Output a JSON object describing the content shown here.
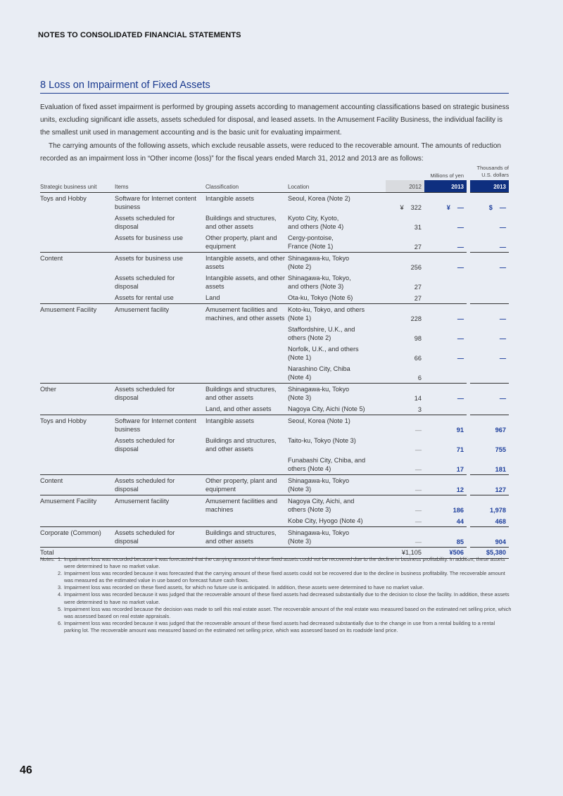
{
  "header": "NOTES TO CONSOLIDATED FINANCIAL STATEMENTS",
  "section_title": "8  Loss on Impairment of Fixed Assets",
  "intro": [
    "Evaluation of fixed asset impairment is performed by grouping assets according to management accounting classifications based on strategic business units, excluding significant idle assets, assets scheduled for disposal, and leased assets. In the Amusement Facility Business, the individual facility is the smallest unit used in management accounting and is the basic unit for evaluating impairment.",
    "The carrying amounts of the following assets, which exclude reusable assets, were reduced to the recoverable amount. The amounts of reduction recorded as an impairment loss in “Other income (loss)” for the fiscal years ended March 31, 2012 and 2013 are as follows:"
  ],
  "units": {
    "yen": "Millions of yen",
    "usd": "Thousands of\nU.S. dollars"
  },
  "columns": [
    "Strategic business unit",
    "Items",
    "Classification",
    "Location",
    "2012",
    "2013",
    "2013"
  ],
  "rows": [
    {
      "g": 1,
      "unit": "Toys and Hobby",
      "item": "Software for Internet content\nbusiness",
      "cls": "Intangible assets",
      "loc": "Seoul, Korea (Note 2)",
      "y12": "322",
      "y12c": "¥",
      "y13": "—",
      "y13c": "¥",
      "usd": "—",
      "usdc": "$"
    },
    {
      "g": 0,
      "unit": "",
      "item": "Assets scheduled for\ndisposal",
      "cls": "Buildings and structures,\nand other assets",
      "loc": "Kyoto City, Kyoto,\nand others (Note 4)",
      "y12": "31",
      "y13": "—",
      "usd": "—"
    },
    {
      "g": 0,
      "unit": "",
      "item": "Assets for business use",
      "cls": "Other property, plant and\nequipment",
      "loc": "Cergy-pontoise,\nFrance (Note 1)",
      "y12": "27",
      "y13": "—",
      "usd": "—"
    },
    {
      "g": 1,
      "unit": "Content",
      "item": "Assets for business use",
      "cls": "Intangible assets, and other\nassets",
      "loc": "Shinagawa-ku, Tokyo\n(Note 2)",
      "y12": "256",
      "y13": "—",
      "usd": "—"
    },
    {
      "g": 0,
      "unit": "",
      "item": "Assets scheduled for\ndisposal",
      "cls": "Intangible assets, and other\nassets",
      "loc": "Shinagawa-ku, Tokyo,\nand others (Note 3)",
      "y12": "27",
      "y13": "",
      "usd": ""
    },
    {
      "g": 0,
      "unit": "",
      "item": "Assets for rental use",
      "cls": "Land",
      "loc": "Ota-ku, Tokyo (Note 6)",
      "y12": "27",
      "y13": "",
      "usd": ""
    },
    {
      "g": 1,
      "unit": "Amusement Facility",
      "item": "Amusement facility",
      "cls": "Amusement facilities and\nmachines, and other assets",
      "loc": "Koto-ku, Tokyo, and others\n(Note 1)",
      "y12": "228",
      "y13": "—",
      "usd": "—"
    },
    {
      "g": 0,
      "unit": "",
      "item": "",
      "cls": "",
      "loc": "Staffordshire, U.K., and\nothers (Note 2)",
      "y12": "98",
      "y13": "—",
      "usd": "—"
    },
    {
      "g": 0,
      "unit": "",
      "item": "",
      "cls": "",
      "loc": "Norfolk, U.K., and others\n(Note 1)",
      "y12": "66",
      "y13": "—",
      "usd": "—"
    },
    {
      "g": 0,
      "unit": "",
      "item": "",
      "cls": "",
      "loc": "Narashino City, Chiba\n(Note 4)",
      "y12": "6",
      "y13": "",
      "usd": ""
    },
    {
      "g": 1,
      "unit": "Other",
      "item": "Assets scheduled for\ndisposal",
      "cls": "Buildings and structures,\nand other assets",
      "loc": "Shinagawa-ku, Tokyo\n(Note 3)",
      "y12": "14",
      "y13": "—",
      "usd": "—"
    },
    {
      "g": 0,
      "unit": "",
      "item": "",
      "cls": "Land, and other assets",
      "loc": "Nagoya City, Aichi (Note 5)",
      "y12": "3",
      "y13": "",
      "usd": ""
    },
    {
      "g": 1,
      "unit": "Toys and Hobby",
      "item": "Software for Internet content\nbusiness",
      "cls": "Intangible assets",
      "loc": "Seoul, Korea (Note 1)",
      "y12": "—",
      "y13": "91",
      "usd": "967"
    },
    {
      "g": 0,
      "unit": "",
      "item": "Assets scheduled for\ndisposal",
      "cls": "Buildings and structures,\nand other assets",
      "loc": "Taito-ku, Tokyo (Note 3)",
      "y12": "—",
      "y13": "71",
      "usd": "755"
    },
    {
      "g": 0,
      "unit": "",
      "item": "",
      "cls": "",
      "loc": "Funabashi City, Chiba, and\nothers (Note 4)",
      "y12": "—",
      "y13": "17",
      "usd": "181"
    },
    {
      "g": 1,
      "unit": "Content",
      "item": "Assets scheduled for\ndisposal",
      "cls": "Other property, plant and\nequipment",
      "loc": "Shinagawa-ku, Tokyo\n(Note 3)",
      "y12": "—",
      "y13": "12",
      "usd": "127"
    },
    {
      "g": 1,
      "unit": "Amusement Facility",
      "item": "Amusement facility",
      "cls": "Amusement facilities and\nmachines",
      "loc": "Nagoya City, Aichi, and\nothers (Note 3)",
      "y12": "—",
      "y13": "186",
      "usd": "1,978"
    },
    {
      "g": 0,
      "unit": "",
      "item": "",
      "cls": "",
      "loc": "Kobe City, Hyogo (Note 4)",
      "y12": "—",
      "y13": "44",
      "usd": "468"
    },
    {
      "g": 1,
      "unit": "Corporate (Common)",
      "item": "Assets scheduled for\ndisposal",
      "cls": "Buildings and structures,\nand other assets",
      "loc": "Shinagawa-ku, Tokyo\n(Note 3)",
      "y12": "—",
      "y13": "85",
      "usd": "904"
    }
  ],
  "total": {
    "label": "Total",
    "y12": "¥1,105",
    "y13": "¥506",
    "usd": "$5,380"
  },
  "notes_label": "Notes:",
  "notes": [
    "Impairment loss was recorded because it was forecasted that the carrying amount of these fixed assets could not be recovered due to the decline in business profitability. In addition, these assets were determined to have no market value.",
    "Impairment loss was recorded because it was forecasted that the carrying amount of these fixed assets could not be recovered due to the decline in business profitability. The recoverable amount was measured as the estimated value in use based on forecast future cash flows.",
    "Impairment loss was recorded on these fixed assets, for which no future use is anticipated. In addition, these assets were determined to have no market value.",
    "Impairment loss was recorded because it was judged that the recoverable amount of these fixed assets had decreased substantially due to the decision to close the facility. In addition, these assets were determined to have no market value.",
    "Impairment loss was recorded because the decision was made to sell this real estate asset. The recoverable amount of the real estate was measured based on the estimated net selling price, which was assessed based on real estate appraisals.",
    "Impairment loss was recorded because it was judged that the recoverable amount of these fixed assets had decreased substantially due to the change in use from a rental building to a rental parking lot. The recoverable amount was measured based on the estimated net selling price, which was assessed based on its roadside land price."
  ],
  "page_number": "46",
  "colors": {
    "accent": "#1a3a8f",
    "header_2013_bg": "#0e2f7f",
    "header_2012_bg": "#d9dbdf",
    "page_bg": "#e9edf4"
  }
}
